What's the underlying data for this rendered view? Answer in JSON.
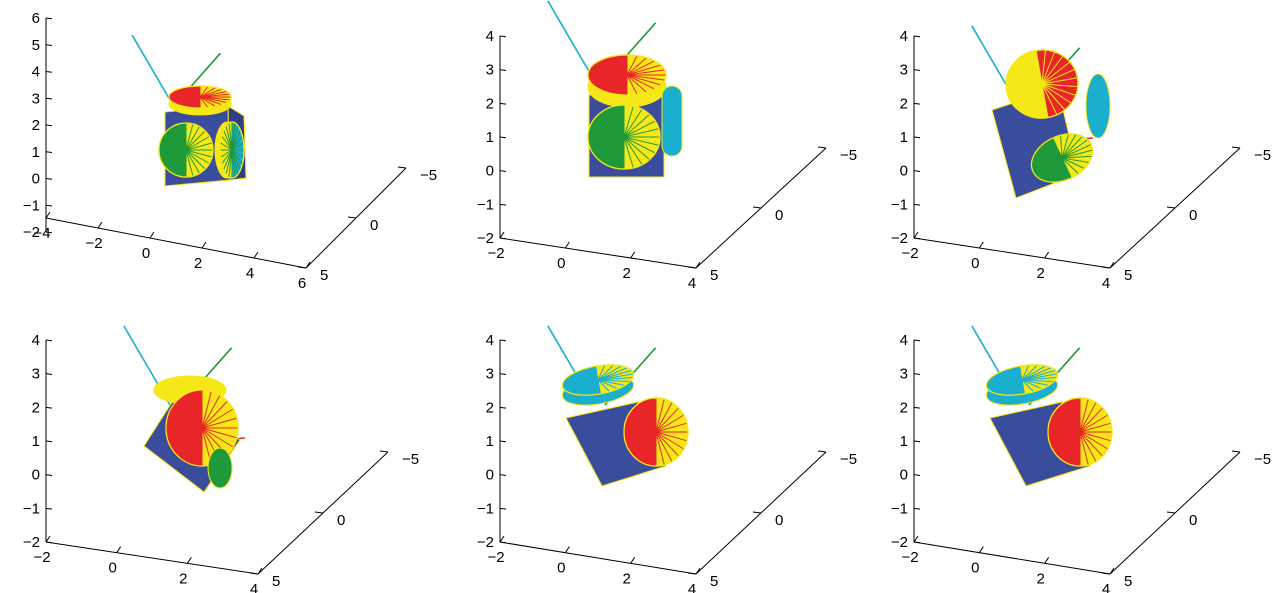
{
  "colors": {
    "blue": "#3a4d9c",
    "yellow": "#f6e716",
    "red": "#e8262a",
    "green": "#1f9a3a",
    "cyan": "#1aaecf",
    "ray_red": "#e8262a",
    "ray_green": "#1f9a3a",
    "ray_cyan": "#1aaecf"
  },
  "panels": [
    {
      "name": "panel-top-left",
      "z_ticks": [
        "6",
        "5",
        "4",
        "3",
        "2",
        "1",
        "0",
        "−1",
        "−2"
      ],
      "x_ticks": [
        "−4",
        "−2",
        "0",
        "2",
        "4",
        "6"
      ],
      "y_ticks": [
        "−5",
        "0",
        "5"
      ],
      "pose": "upright-small"
    },
    {
      "name": "panel-top-middle",
      "z_ticks": [
        "4",
        "3",
        "2",
        "1",
        "0",
        "−1",
        "−2"
      ],
      "x_ticks": [
        "−2",
        "0",
        "2",
        "4"
      ],
      "y_ticks": [
        "−5",
        "0",
        "5"
      ],
      "pose": "upright"
    },
    {
      "name": "panel-top-right",
      "z_ticks": [
        "4",
        "3",
        "2",
        "1",
        "0",
        "−1",
        "−2"
      ],
      "x_ticks": [
        "−2",
        "0",
        "2",
        "4"
      ],
      "y_ticks": [
        "−5",
        "0",
        "5"
      ],
      "pose": "tilted-1"
    },
    {
      "name": "panel-bottom-left",
      "z_ticks": [
        "4",
        "3",
        "2",
        "1",
        "0",
        "−1",
        "−2"
      ],
      "x_ticks": [
        "−2",
        "0",
        "2",
        "4"
      ],
      "y_ticks": [
        "−5",
        "0",
        "5"
      ],
      "pose": "tilted-2"
    },
    {
      "name": "panel-bottom-middle",
      "z_ticks": [
        "4",
        "3",
        "2",
        "1",
        "0",
        "−1",
        "−2"
      ],
      "x_ticks": [
        "−2",
        "0",
        "2",
        "4"
      ],
      "y_ticks": [
        "−5",
        "0",
        "5"
      ],
      "pose": "tilted-3"
    },
    {
      "name": "panel-bottom-right",
      "z_ticks": [
        "4",
        "3",
        "2",
        "1",
        "0",
        "−1",
        "−2"
      ],
      "x_ticks": [
        "−2",
        "0",
        "2",
        "4"
      ],
      "y_ticks": [
        "−5",
        "0",
        "5"
      ],
      "pose": "tilted-4"
    }
  ]
}
